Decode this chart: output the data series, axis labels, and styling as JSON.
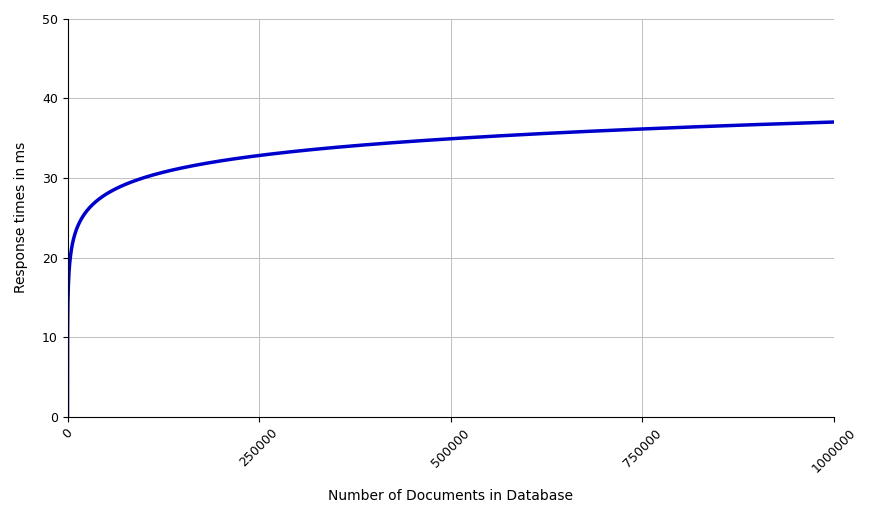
{
  "xlabel": "Number of Documents in Database",
  "ylabel": "Response times in ms",
  "line_color": "#0000CC",
  "line_width": 2.5,
  "xlim": [
    0,
    1000000
  ],
  "ylim": [
    0,
    50
  ],
  "xticks": [
    0,
    250000,
    500000,
    750000,
    1000000
  ],
  "yticks": [
    0,
    10,
    20,
    30,
    40,
    50
  ],
  "grid_color": "#c0c0c0",
  "background_color": "#ffffff",
  "x_points": [
    0,
    200,
    500,
    1000,
    2000,
    5000,
    10000,
    25000,
    50000,
    100000,
    150000,
    250000,
    500000,
    750000,
    1000000
  ],
  "y_points": [
    0,
    5,
    10,
    19,
    22.5,
    25,
    26.5,
    27.8,
    28.5,
    29.0,
    29.5,
    30.3,
    33.0,
    35.5,
    38.0
  ]
}
